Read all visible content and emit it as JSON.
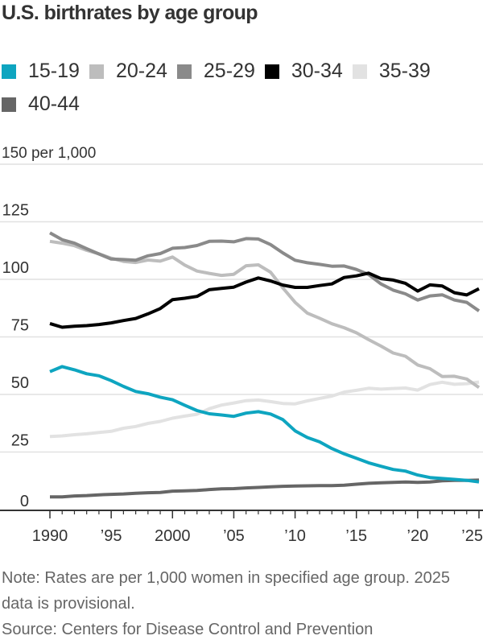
{
  "chart_data": {
    "type": "line",
    "title": "U.S. birthrates by age group",
    "xlabel": "",
    "ylabel": "per 1,000",
    "x": [
      1990,
      1991,
      1992,
      1993,
      1994,
      1995,
      1996,
      1997,
      1998,
      1999,
      2000,
      2001,
      2002,
      2003,
      2004,
      2005,
      2006,
      2007,
      2008,
      2009,
      2010,
      2011,
      2012,
      2013,
      2014,
      2015,
      2016,
      2017,
      2018,
      2019,
      2020,
      2021,
      2022,
      2023,
      2024,
      2025
    ],
    "xlim": [
      1990,
      2025
    ],
    "ylim": [
      0,
      150
    ],
    "yticks": [
      0,
      25,
      50,
      75,
      100,
      125,
      150
    ],
    "ytick_labels": [
      "0",
      "25",
      "50",
      "75",
      "100",
      "125",
      "150 per 1,000"
    ],
    "xticks": [
      1990,
      1995,
      2000,
      2005,
      2010,
      2015,
      2020,
      2025
    ],
    "xtick_labels": [
      "1990",
      "’95",
      "2000",
      "’05",
      "’10",
      "’15",
      "’20",
      "’25"
    ],
    "grid": true,
    "legend_position": "top",
    "series": [
      {
        "name": "15-19",
        "color": "#0ea5c0",
        "values": [
          59.9,
          62.1,
          60.7,
          59.0,
          58.1,
          56.0,
          53.5,
          51.3,
          50.3,
          48.8,
          47.7,
          45.3,
          43.0,
          41.6,
          41.1,
          40.5,
          41.9,
          42.5,
          41.5,
          39.1,
          34.2,
          31.3,
          29.4,
          26.5,
          24.2,
          22.3,
          20.3,
          18.8,
          17.4,
          16.7,
          15.0,
          13.9,
          13.5,
          13.1,
          12.7,
          12.0
        ]
      },
      {
        "name": "20-24",
        "color": "#bdbdbd",
        "values": [
          116.5,
          115.7,
          114.6,
          112.6,
          111.1,
          109.2,
          107.8,
          107.3,
          108.4,
          107.9,
          109.7,
          106.2,
          103.6,
          102.6,
          101.7,
          102.2,
          105.9,
          106.3,
          103.1,
          96.3,
          90.0,
          85.3,
          83.1,
          80.7,
          79.0,
          76.8,
          73.8,
          71.0,
          68.0,
          66.6,
          62.8,
          61.2,
          57.8,
          57.9,
          56.7,
          53.0
        ]
      },
      {
        "name": "25-29",
        "color": "#8a8a8a",
        "values": [
          120.2,
          117.2,
          115.7,
          113.3,
          111.0,
          108.8,
          108.6,
          108.3,
          110.2,
          111.2,
          113.5,
          113.8,
          114.7,
          116.5,
          116.6,
          116.3,
          117.7,
          117.5,
          115.1,
          111.5,
          108.3,
          107.2,
          106.5,
          105.7,
          105.8,
          104.3,
          102.1,
          98.0,
          95.3,
          93.7,
          91.0,
          92.8,
          93.3,
          91.0,
          90.0,
          86.3
        ]
      },
      {
        "name": "30-34",
        "color": "#000000",
        "values": [
          80.8,
          79.2,
          79.6,
          79.9,
          80.4,
          81.1,
          82.1,
          83.0,
          85.0,
          87.3,
          91.2,
          91.8,
          92.6,
          95.5,
          96.1,
          96.6,
          98.8,
          100.6,
          99.3,
          97.5,
          96.5,
          96.5,
          97.3,
          98.0,
          100.8,
          101.5,
          102.7,
          100.3,
          99.7,
          98.3,
          94.9,
          97.6,
          97.1,
          94.2,
          93.2,
          95.9
        ]
      },
      {
        "name": "35-39",
        "color": "#e2e2e2",
        "values": [
          31.7,
          32.0,
          32.5,
          32.9,
          33.5,
          34.0,
          35.3,
          36.1,
          37.4,
          38.3,
          39.7,
          40.6,
          41.4,
          43.8,
          45.4,
          46.3,
          47.3,
          47.6,
          46.9,
          46.1,
          45.9,
          47.2,
          48.3,
          49.3,
          51.0,
          51.8,
          52.7,
          52.3,
          52.6,
          52.8,
          51.9,
          54.3,
          55.3,
          54.4,
          54.7,
          55.4
        ]
      },
      {
        "name": "40-44",
        "color": "#666666",
        "values": [
          5.5,
          5.5,
          5.9,
          6.1,
          6.4,
          6.6,
          6.8,
          7.1,
          7.3,
          7.4,
          8.0,
          8.1,
          8.3,
          8.7,
          9.0,
          9.1,
          9.4,
          9.6,
          9.9,
          10.1,
          10.2,
          10.3,
          10.4,
          10.4,
          10.6,
          11.0,
          11.4,
          11.6,
          11.8,
          12.0,
          11.8,
          12.0,
          12.5,
          12.7,
          12.7,
          12.8
        ]
      }
    ]
  },
  "note": "Note: Rates are per 1,000 women in specified age group. 2025 data is provisional.",
  "source": "Source: Centers for Disease Control and Prevention"
}
